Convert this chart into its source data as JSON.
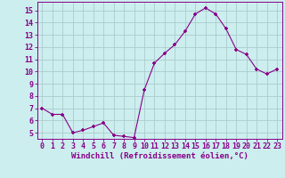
{
  "x": [
    0,
    1,
    2,
    3,
    4,
    5,
    6,
    7,
    8,
    9,
    10,
    11,
    12,
    13,
    14,
    15,
    16,
    17,
    18,
    19,
    20,
    21,
    22,
    23
  ],
  "y": [
    7.0,
    6.5,
    6.5,
    5.0,
    5.2,
    5.5,
    5.8,
    4.8,
    4.7,
    4.6,
    8.5,
    10.7,
    11.5,
    12.2,
    13.3,
    14.7,
    15.2,
    14.7,
    13.5,
    11.8,
    11.4,
    10.2,
    9.8,
    10.2
  ],
  "line_color": "#880088",
  "marker": "+",
  "bg_color": "#cceeee",
  "grid_color": "#aacccc",
  "xlabel": "Windchill (Refroidissement éolien,°C)",
  "yticks": [
    5,
    6,
    7,
    8,
    9,
    10,
    11,
    12,
    13,
    14,
    15
  ],
  "xticks": [
    0,
    1,
    2,
    3,
    4,
    5,
    6,
    7,
    8,
    9,
    10,
    11,
    12,
    13,
    14,
    15,
    16,
    17,
    18,
    19,
    20,
    21,
    22,
    23
  ],
  "ylim": [
    4.5,
    15.7
  ],
  "xlim": [
    -0.5,
    23.5
  ],
  "xlabel_fontsize": 6.5,
  "tick_fontsize": 6.0,
  "label_color": "#880088"
}
